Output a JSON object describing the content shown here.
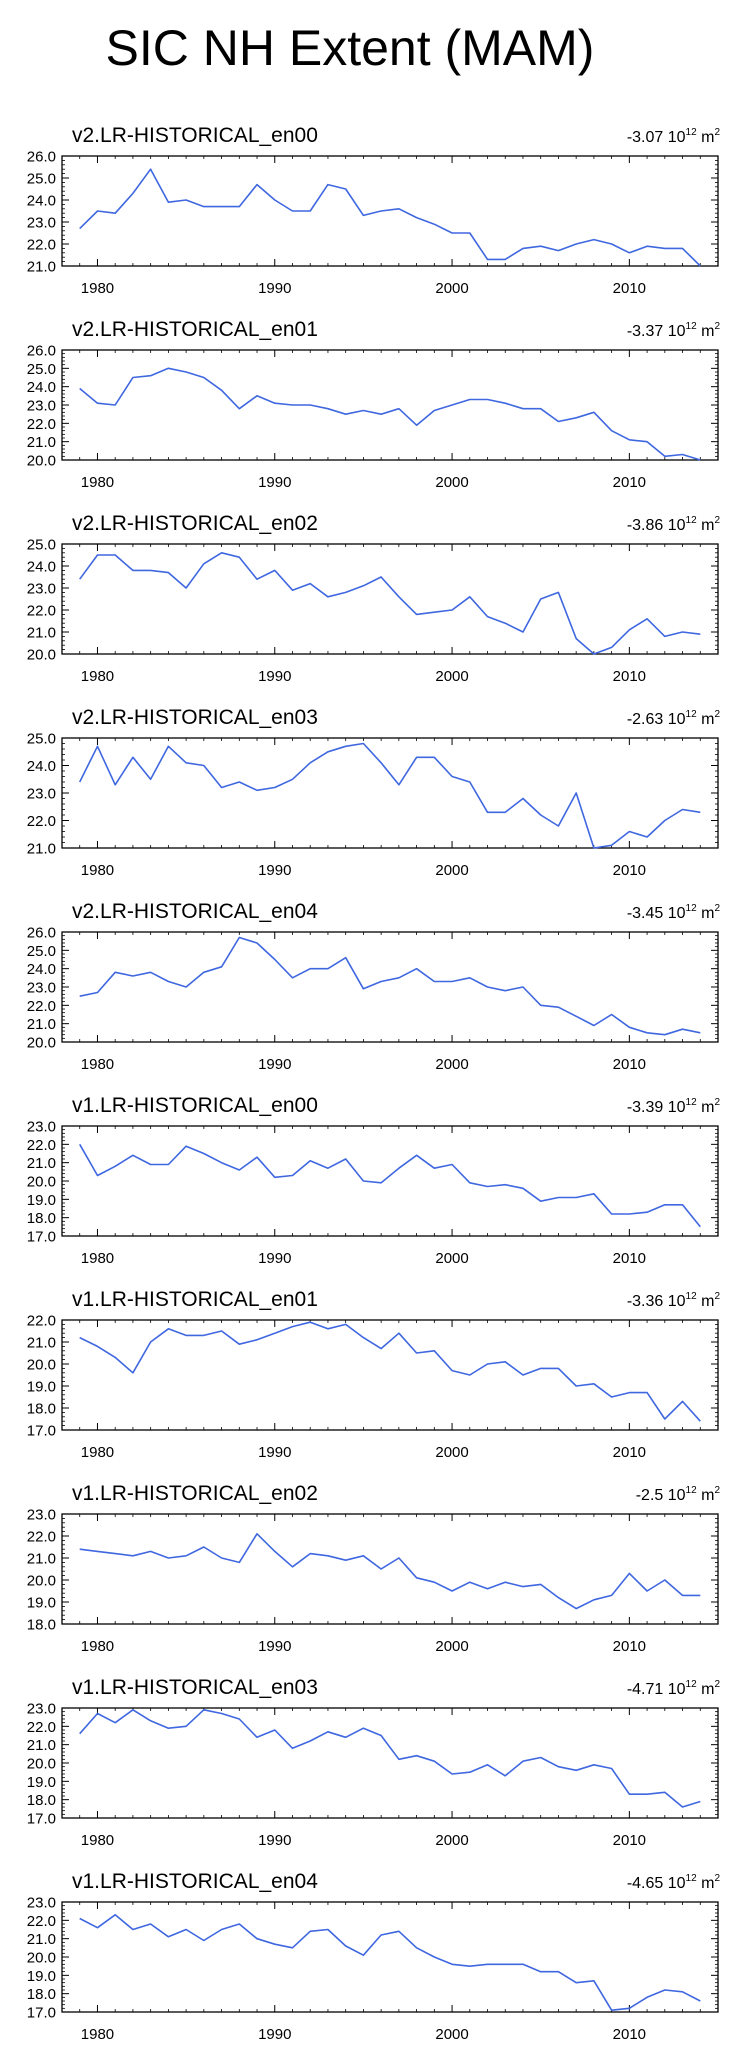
{
  "title": "SIC NH Extent (MAM)",
  "line_color": "#3F67E0",
  "x_tick_labels": [
    "1980",
    "1990",
    "2000",
    "2010"
  ],
  "chart_data": [
    {
      "type": "line",
      "title": "v2.LR-HISTORICAL_en00",
      "trend": "-3.07",
      "trend_unit_power": "12",
      "trend_unit": "m",
      "trend_unit_sup": "2",
      "ylim": [
        21.0,
        26.0
      ],
      "yticks": [
        "21.0",
        "22.0",
        "23.0",
        "24.0",
        "25.0",
        "26.0"
      ],
      "x_start": 1979,
      "values": [
        22.7,
        23.5,
        23.4,
        24.3,
        25.4,
        23.9,
        24.0,
        23.7,
        23.7,
        23.7,
        24.7,
        24.0,
        23.5,
        23.5,
        24.7,
        24.5,
        23.3,
        23.5,
        23.6,
        23.2,
        22.9,
        22.5,
        22.5,
        21.3,
        21.3,
        21.8,
        21.9,
        21.7,
        22.0,
        22.2,
        22.0,
        21.6,
        21.9,
        21.8,
        21.8,
        21.0
      ]
    },
    {
      "type": "line",
      "title": "v2.LR-HISTORICAL_en01",
      "trend": "-3.37",
      "trend_unit_power": "12",
      "trend_unit": "m",
      "trend_unit_sup": "2",
      "ylim": [
        20.0,
        26.0
      ],
      "yticks": [
        "20.0",
        "21.0",
        "22.0",
        "23.0",
        "24.0",
        "25.0",
        "26.0"
      ],
      "x_start": 1979,
      "values": [
        23.9,
        23.1,
        23.0,
        24.5,
        24.6,
        25.0,
        24.8,
        24.5,
        23.8,
        22.8,
        23.5,
        23.1,
        23.0,
        23.0,
        22.8,
        22.5,
        22.7,
        22.5,
        22.8,
        21.9,
        22.7,
        23.0,
        23.3,
        23.3,
        23.1,
        22.8,
        22.8,
        22.1,
        22.3,
        22.6,
        21.6,
        21.1,
        21.0,
        20.2,
        20.3,
        20.0
      ]
    },
    {
      "type": "line",
      "title": "v2.LR-HISTORICAL_en02",
      "trend": "-3.86",
      "trend_unit_power": "12",
      "trend_unit": "m",
      "trend_unit_sup": "2",
      "ylim": [
        20.0,
        25.0
      ],
      "yticks": [
        "20.0",
        "21.0",
        "22.0",
        "23.0",
        "24.0",
        "25.0"
      ],
      "x_start": 1979,
      "values": [
        23.4,
        24.5,
        24.5,
        23.8,
        23.8,
        23.7,
        23.0,
        24.1,
        24.6,
        24.4,
        23.4,
        23.8,
        22.9,
        23.2,
        22.6,
        22.8,
        23.1,
        23.5,
        22.6,
        21.8,
        21.9,
        22.0,
        22.6,
        21.7,
        21.4,
        21.0,
        22.5,
        22.8,
        20.7,
        20.0,
        20.3,
        21.1,
        21.6,
        20.8,
        21.0,
        20.9
      ]
    },
    {
      "type": "line",
      "title": "v2.LR-HISTORICAL_en03",
      "trend": "-2.63",
      "trend_unit_power": "12",
      "trend_unit": "m",
      "trend_unit_sup": "2",
      "ylim": [
        21.0,
        25.0
      ],
      "yticks": [
        "21.0",
        "22.0",
        "23.0",
        "24.0",
        "25.0"
      ],
      "x_start": 1979,
      "values": [
        23.4,
        24.7,
        23.3,
        24.3,
        23.5,
        24.7,
        24.1,
        24.0,
        23.2,
        23.4,
        23.1,
        23.2,
        23.5,
        24.1,
        24.5,
        24.7,
        24.8,
        24.1,
        23.3,
        24.3,
        24.3,
        23.6,
        23.4,
        22.3,
        22.3,
        22.8,
        22.2,
        21.8,
        23.0,
        21.0,
        21.1,
        21.6,
        21.4,
        22.0,
        22.4,
        22.3
      ]
    },
    {
      "type": "line",
      "title": "v2.LR-HISTORICAL_en04",
      "trend": "-3.45",
      "trend_unit_power": "12",
      "trend_unit": "m",
      "trend_unit_sup": "2",
      "ylim": [
        20.0,
        26.0
      ],
      "yticks": [
        "20.0",
        "21.0",
        "22.0",
        "23.0",
        "24.0",
        "25.0",
        "26.0"
      ],
      "x_start": 1979,
      "values": [
        22.5,
        22.7,
        23.8,
        23.6,
        23.8,
        23.3,
        23.0,
        23.8,
        24.1,
        25.7,
        25.4,
        24.5,
        23.5,
        24.0,
        24.0,
        24.6,
        22.9,
        23.3,
        23.5,
        24.0,
        23.3,
        23.3,
        23.5,
        23.0,
        22.8,
        23.0,
        22.0,
        21.9,
        21.4,
        20.9,
        21.5,
        20.8,
        20.5,
        20.4,
        20.7,
        20.5
      ]
    },
    {
      "type": "line",
      "title": "v1.LR-HISTORICAL_en00",
      "trend": "-3.39",
      "trend_unit_power": "12",
      "trend_unit": "m",
      "trend_unit_sup": "2",
      "ylim": [
        17.0,
        23.0
      ],
      "yticks": [
        "17.0",
        "18.0",
        "19.0",
        "20.0",
        "21.0",
        "22.0",
        "23.0"
      ],
      "x_start": 1979,
      "values": [
        22.0,
        20.3,
        20.8,
        21.4,
        20.9,
        20.9,
        21.9,
        21.5,
        21.0,
        20.6,
        21.3,
        20.2,
        20.3,
        21.1,
        20.7,
        21.2,
        20.0,
        19.9,
        20.7,
        21.4,
        20.7,
        20.9,
        19.9,
        19.7,
        19.8,
        19.6,
        18.9,
        19.1,
        19.1,
        19.3,
        18.2,
        18.2,
        18.3,
        18.7,
        18.7,
        17.5
      ]
    },
    {
      "type": "line",
      "title": "v1.LR-HISTORICAL_en01",
      "trend": "-3.36",
      "trend_unit_power": "12",
      "trend_unit": "m",
      "trend_unit_sup": "2",
      "ylim": [
        17.0,
        22.0
      ],
      "yticks": [
        "17.0",
        "18.0",
        "19.0",
        "20.0",
        "21.0",
        "22.0"
      ],
      "x_start": 1979,
      "values": [
        21.2,
        20.8,
        20.3,
        19.6,
        21.0,
        21.6,
        21.3,
        21.3,
        21.5,
        20.9,
        21.1,
        21.4,
        21.7,
        21.9,
        21.6,
        21.8,
        21.2,
        20.7,
        21.4,
        20.5,
        20.6,
        19.7,
        19.5,
        20.0,
        20.1,
        19.5,
        19.8,
        19.8,
        19.0,
        19.1,
        18.5,
        18.7,
        18.7,
        17.5,
        18.3,
        17.4
      ]
    },
    {
      "type": "line",
      "title": "v1.LR-HISTORICAL_en02",
      "trend": "-2.5",
      "trend_unit_power": "12",
      "trend_unit": "m",
      "trend_unit_sup": "2",
      "ylim": [
        18.0,
        23.0
      ],
      "yticks": [
        "18.0",
        "19.0",
        "20.0",
        "21.0",
        "22.0",
        "23.0"
      ],
      "x_start": 1979,
      "values": [
        21.4,
        21.3,
        21.2,
        21.1,
        21.3,
        21.0,
        21.1,
        21.5,
        21.0,
        20.8,
        22.1,
        21.3,
        20.6,
        21.2,
        21.1,
        20.9,
        21.1,
        20.5,
        21.0,
        20.1,
        19.9,
        19.5,
        19.9,
        19.6,
        19.9,
        19.7,
        19.8,
        19.2,
        18.7,
        19.1,
        19.3,
        20.3,
        19.5,
        20.0,
        19.3,
        19.3
      ]
    },
    {
      "type": "line",
      "title": "v1.LR-HISTORICAL_en03",
      "trend": "-4.71",
      "trend_unit_power": "12",
      "trend_unit": "m",
      "trend_unit_sup": "2",
      "ylim": [
        17.0,
        23.0
      ],
      "yticks": [
        "17.0",
        "18.0",
        "19.0",
        "20.0",
        "21.0",
        "22.0",
        "23.0"
      ],
      "x_start": 1979,
      "values": [
        21.6,
        22.7,
        22.2,
        22.9,
        22.3,
        21.9,
        22.0,
        22.9,
        22.7,
        22.4,
        21.4,
        21.8,
        20.8,
        21.2,
        21.7,
        21.4,
        21.9,
        21.5,
        20.2,
        20.4,
        20.1,
        19.4,
        19.5,
        19.9,
        19.3,
        20.1,
        20.3,
        19.8,
        19.6,
        19.9,
        19.7,
        18.3,
        18.3,
        18.4,
        17.6,
        17.9
      ]
    },
    {
      "type": "line",
      "title": "v1.LR-HISTORICAL_en04",
      "trend": "-4.65",
      "trend_unit_power": "12",
      "trend_unit": "m",
      "trend_unit_sup": "2",
      "ylim": [
        17.0,
        23.0
      ],
      "yticks": [
        "17.0",
        "18.0",
        "19.0",
        "20.0",
        "21.0",
        "22.0",
        "23.0"
      ],
      "x_start": 1979,
      "values": [
        22.1,
        21.6,
        22.3,
        21.5,
        21.8,
        21.1,
        21.5,
        20.9,
        21.5,
        21.8,
        21.0,
        20.7,
        20.5,
        21.4,
        21.5,
        20.6,
        20.1,
        21.2,
        21.4,
        20.5,
        20.0,
        19.6,
        19.5,
        19.6,
        19.6,
        19.6,
        19.2,
        19.2,
        18.6,
        18.7,
        17.1,
        17.2,
        17.8,
        18.2,
        18.1,
        17.6
      ]
    }
  ]
}
